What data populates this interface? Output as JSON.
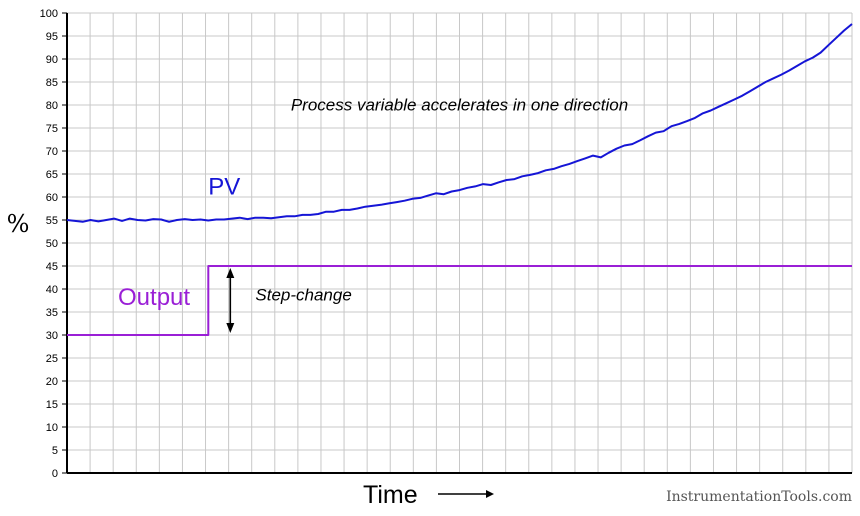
{
  "chart_data": {
    "type": "line",
    "title": "",
    "xlabel": "Time",
    "ylabel": "%",
    "ylim": [
      0,
      100
    ],
    "yticks": [
      0,
      5,
      10,
      15,
      20,
      25,
      30,
      35,
      40,
      45,
      50,
      55,
      60,
      65,
      70,
      75,
      80,
      85,
      90,
      95,
      100
    ],
    "grid": true,
    "series": [
      {
        "name": "PV",
        "color": "#1515d6",
        "x": [
          0,
          2,
          3,
          4,
          5,
          6,
          7,
          8,
          9,
          10,
          11,
          12,
          13,
          14,
          15,
          16,
          17,
          18,
          19,
          20,
          21,
          22,
          23,
          24,
          25,
          26,
          27,
          28,
          29,
          30,
          31,
          32,
          33,
          34,
          35,
          36,
          37,
          38,
          39,
          40,
          41,
          42,
          43,
          44,
          45,
          46,
          47,
          48,
          49,
          50,
          51,
          52,
          53,
          54,
          55,
          56,
          57,
          58,
          59,
          60,
          61,
          62,
          63,
          64,
          65,
          66,
          67,
          68,
          69,
          70,
          71,
          72,
          73,
          74,
          75,
          76,
          77,
          78,
          79,
          80,
          81,
          82,
          83,
          84,
          85,
          86,
          87,
          88,
          89,
          90,
          91,
          92,
          93,
          94,
          95,
          96,
          97,
          98,
          99,
          100
        ],
        "y": [
          55,
          54.6,
          55,
          54.7,
          55,
          55.3,
          54.8,
          55.3,
          55,
          54.9,
          55.2,
          55.1,
          54.6,
          55,
          55.2,
          55,
          55.1,
          54.9,
          55.1,
          55.1,
          55.3,
          55.5,
          55.2,
          55.5,
          55.5,
          55.4,
          55.6,
          55.8,
          55.8,
          56.1,
          56.1,
          56.3,
          56.8,
          56.8,
          57.2,
          57.2,
          57.5,
          57.9,
          58.1,
          58.3,
          58.6,
          58.9,
          59.2,
          59.6,
          59.8,
          60.3,
          60.8,
          60.6,
          61.2,
          61.5,
          62,
          62.3,
          62.8,
          62.6,
          63.2,
          63.7,
          63.9,
          64.5,
          64.8,
          65.2,
          65.8,
          66.1,
          66.7,
          67.2,
          67.8,
          68.4,
          69,
          68.6,
          69.6,
          70.5,
          71.2,
          71.5,
          72.3,
          73.2,
          74,
          74.3,
          75.4,
          75.9,
          76.5,
          77.2,
          78.2,
          78.8,
          79.6,
          80.4,
          81.2,
          82,
          83,
          84,
          85,
          85.8,
          86.6,
          87.5,
          88.5,
          89.5,
          90.3,
          91.4,
          93,
          94.6,
          96.2,
          97.6
        ]
      },
      {
        "name": "Output",
        "color": "#9a1fd6",
        "x": [
          0,
          18,
          18,
          100
        ],
        "y": [
          30,
          30,
          45,
          45
        ]
      }
    ],
    "annotations": [
      {
        "text": "Process variable accelerates in one direction",
        "x": 50,
        "y": 78.8
      },
      {
        "text": "Step-change",
        "x": 24,
        "y": 37.5
      },
      {
        "text": "PV",
        "x": 18,
        "y": 60.5
      },
      {
        "text": "Output",
        "x": 6.5,
        "y": 36.5
      }
    ]
  },
  "watermark": "InstrumentationTools.com"
}
